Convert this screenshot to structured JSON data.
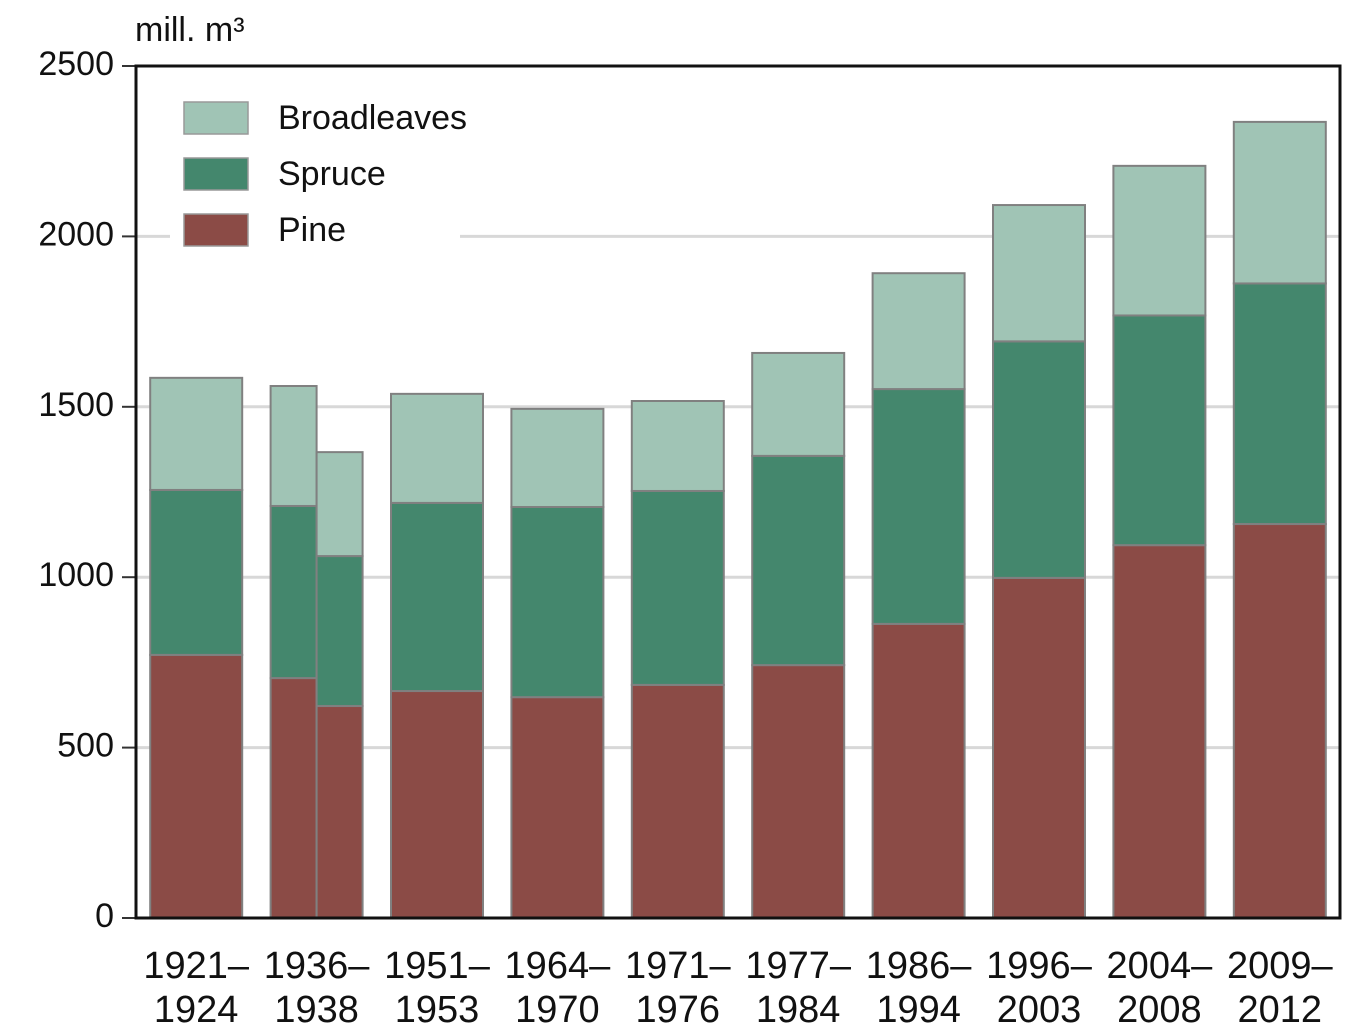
{
  "chart_data": {
    "type": "stacked-bar",
    "ylabel": "mill. m³",
    "categories": [
      "1921–\n1924",
      "1936–\n1938",
      null,
      "1951–\n1953",
      "1964–\n1970",
      "1971–\n1976",
      "1977–\n1984",
      "1986–\n1994",
      "1996–\n2003",
      "2004–\n2008",
      "2009–\n2012"
    ],
    "series": [
      {
        "name": "Pine",
        "color": "#8b4b46",
        "values": [
          772,
          704,
          622,
          666,
          648,
          684,
          742,
          863,
          998,
          1094,
          1156
        ]
      },
      {
        "name": "Spruce",
        "color": "#44876d",
        "values": [
          484,
          505,
          440,
          552,
          558,
          569,
          614,
          689,
          694,
          674,
          706
        ]
      },
      {
        "name": "Broadleaves",
        "color": "#a0c4b5",
        "values": [
          329,
          352,
          305,
          320,
          288,
          264,
          302,
          340,
          400,
          439,
          474
        ]
      }
    ],
    "ylim": [
      0,
      2500
    ],
    "yticks": [
      0,
      500,
      1000,
      1500,
      2000,
      2500
    ],
    "grid": true,
    "legend": "upper-left"
  }
}
